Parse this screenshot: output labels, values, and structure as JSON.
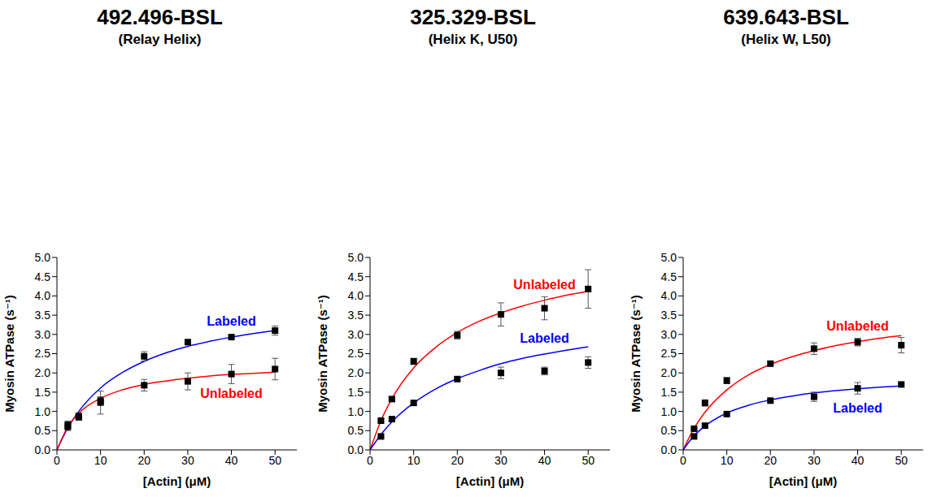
{
  "chart_data": [
    {
      "type": "scatter",
      "title": "492.496-BSL",
      "subtitle": "(Relay Helix)",
      "x_label": "[Actin] (μM)",
      "y_label": "Myosin ATPase (s⁻¹)",
      "x": [
        2.5,
        5,
        10,
        20,
        30,
        40,
        50
      ],
      "xlim": [
        0,
        55
      ],
      "xticks": [
        0,
        10,
        20,
        30,
        40,
        50
      ],
      "ylim": [
        0,
        5
      ],
      "yticks": [
        {
          "value": 0,
          "label": "0.0"
        },
        {
          "value": 0.5,
          "label": "0.5"
        },
        {
          "value": 1,
          "label": "1.0"
        },
        {
          "value": 1.5,
          "label": "1.5"
        },
        {
          "value": 2,
          "label": "2.0"
        },
        {
          "value": 2.5,
          "label": "2.5"
        },
        {
          "value": 3,
          "label": "3.0"
        },
        {
          "value": 3.5,
          "label": "3.5"
        },
        {
          "value": 4,
          "label": "4.0"
        },
        {
          "value": 4.5,
          "label": "4.5"
        },
        {
          "value": 5,
          "label": "5.0"
        }
      ],
      "marker": "square",
      "series": [
        {
          "name": "Labeled",
          "color": "#0000ff",
          "values": [
            0.65,
            0.88,
            1.28,
            2.43,
            2.8,
            2.93,
            3.1
          ],
          "error": [
            0.1,
            0.05,
            0.1,
            0.12,
            0.06,
            0.04,
            0.12
          ],
          "fit_x": [
            0,
            2.5,
            5,
            10,
            15,
            20,
            25,
            30,
            35,
            40,
            45,
            50
          ],
          "fit": [
            0,
            0.57,
            1.0,
            1.61,
            2.01,
            2.3,
            2.52,
            2.69,
            2.82,
            2.93,
            3.02,
            3.1
          ]
        },
        {
          "name": "Unlabeled",
          "color": "#ff0000",
          "values": [
            0.6,
            0.85,
            1.23,
            1.68,
            1.78,
            1.97,
            2.1
          ],
          "error": [
            0.1,
            0.08,
            0.3,
            0.15,
            0.22,
            0.25,
            0.28
          ],
          "fit_x": [
            0,
            2.5,
            5,
            10,
            15,
            20,
            25,
            30,
            35,
            40,
            45,
            50
          ],
          "fit": [
            0,
            0.6,
            0.95,
            1.34,
            1.56,
            1.7,
            1.79,
            1.86,
            1.92,
            1.96,
            1.99,
            2.02
          ]
        }
      ]
    },
    {
      "type": "scatter",
      "title": "325.329-BSL",
      "subtitle": "(Helix K, U50)",
      "x_label": "[Actin] (μM)",
      "y_label": "Myosin ATPase (s⁻¹)",
      "x": [
        2.5,
        5,
        10,
        20,
        30,
        40,
        50
      ],
      "xlim": [
        0,
        55
      ],
      "xticks": [
        0,
        10,
        20,
        30,
        40,
        50
      ],
      "ylim": [
        0,
        5
      ],
      "yticks": [
        {
          "value": 0,
          "label": "0.0"
        },
        {
          "value": 0.5,
          "label": "0.5"
        },
        {
          "value": 1,
          "label": "1.0"
        },
        {
          "value": 1.5,
          "label": "1.5"
        },
        {
          "value": 2,
          "label": "2.0"
        },
        {
          "value": 2.5,
          "label": "2.5"
        },
        {
          "value": 3,
          "label": "3.0"
        },
        {
          "value": 3.5,
          "label": "3.5"
        },
        {
          "value": 4,
          "label": "4.0"
        },
        {
          "value": 4.5,
          "label": "4.5"
        },
        {
          "value": 5,
          "label": "5.0"
        }
      ],
      "marker": "square",
      "series": [
        {
          "name": "Unlabeled",
          "color": "#ff0000",
          "values": [
            0.76,
            1.32,
            2.3,
            2.98,
            3.52,
            3.68,
            4.18
          ],
          "error": [
            0.05,
            0.05,
            0.08,
            0.1,
            0.3,
            0.3,
            0.5
          ],
          "fit_x": [
            0,
            2.5,
            5,
            10,
            15,
            20,
            25,
            30,
            35,
            40,
            45,
            50
          ],
          "fit": [
            0,
            0.76,
            1.33,
            2.13,
            2.66,
            3.05,
            3.34,
            3.56,
            3.74,
            3.89,
            4.02,
            4.12
          ]
        },
        {
          "name": "Labeled",
          "color": "#0000ff",
          "values": [
            0.35,
            0.8,
            1.22,
            1.84,
            2.0,
            2.05,
            2.27
          ],
          "error": [
            0.03,
            0.03,
            0.04,
            0.03,
            0.15,
            0.1,
            0.15
          ],
          "fit_x": [
            0,
            2.5,
            5,
            10,
            15,
            20,
            25,
            30,
            35,
            40,
            45,
            50
          ],
          "fit": [
            0,
            0.4,
            0.73,
            1.22,
            1.58,
            1.85,
            2.06,
            2.24,
            2.38,
            2.49,
            2.59,
            2.68
          ]
        }
      ]
    },
    {
      "type": "scatter",
      "title": "639.643-BSL",
      "subtitle": "(Helix W, L50)",
      "x_label": "[Actin] (μM)",
      "y_label": "Myosin ATPase (s⁻¹)",
      "x": [
        2.5,
        5,
        10,
        20,
        30,
        40,
        50
      ],
      "xlim": [
        0,
        55
      ],
      "xticks": [
        0,
        10,
        20,
        30,
        40,
        50
      ],
      "ylim": [
        0,
        5
      ],
      "yticks": [
        {
          "value": 0,
          "label": "0.0"
        },
        {
          "value": 0.5,
          "label": "0.5"
        },
        {
          "value": 1,
          "label": "1.0"
        },
        {
          "value": 1.5,
          "label": "1.5"
        },
        {
          "value": 2,
          "label": "2.0"
        },
        {
          "value": 2.5,
          "label": "2.5"
        },
        {
          "value": 3,
          "label": "3.0"
        },
        {
          "value": 3.5,
          "label": "3.5"
        },
        {
          "value": 4,
          "label": "4.0"
        },
        {
          "value": 4.5,
          "label": "4.5"
        },
        {
          "value": 5,
          "label": "5.0"
        }
      ],
      "marker": "square",
      "series": [
        {
          "name": "Unlabeled",
          "color": "#ff0000",
          "values": [
            0.55,
            1.22,
            1.8,
            2.24,
            2.63,
            2.8,
            2.72
          ],
          "error": [
            0.03,
            0.08,
            0.08,
            0.04,
            0.15,
            0.1,
            0.2
          ],
          "fit_x": [
            0,
            2.5,
            5,
            10,
            15,
            20,
            25,
            30,
            35,
            40,
            45,
            50
          ],
          "fit": [
            0,
            0.56,
            0.98,
            1.56,
            1.95,
            2.22,
            2.42,
            2.58,
            2.71,
            2.81,
            2.9,
            2.97
          ]
        },
        {
          "name": "Labeled",
          "color": "#0000ff",
          "values": [
            0.35,
            0.63,
            0.93,
            1.28,
            1.38,
            1.6,
            1.7
          ],
          "error": [
            0.03,
            0.03,
            0.03,
            0.03,
            0.12,
            0.15,
            0.06
          ],
          "fit_x": [
            0,
            2.5,
            5,
            10,
            15,
            20,
            25,
            30,
            35,
            40,
            45,
            50
          ],
          "fit": [
            0,
            0.37,
            0.62,
            0.96,
            1.16,
            1.3,
            1.4,
            1.48,
            1.54,
            1.59,
            1.63,
            1.66
          ]
        }
      ]
    }
  ]
}
